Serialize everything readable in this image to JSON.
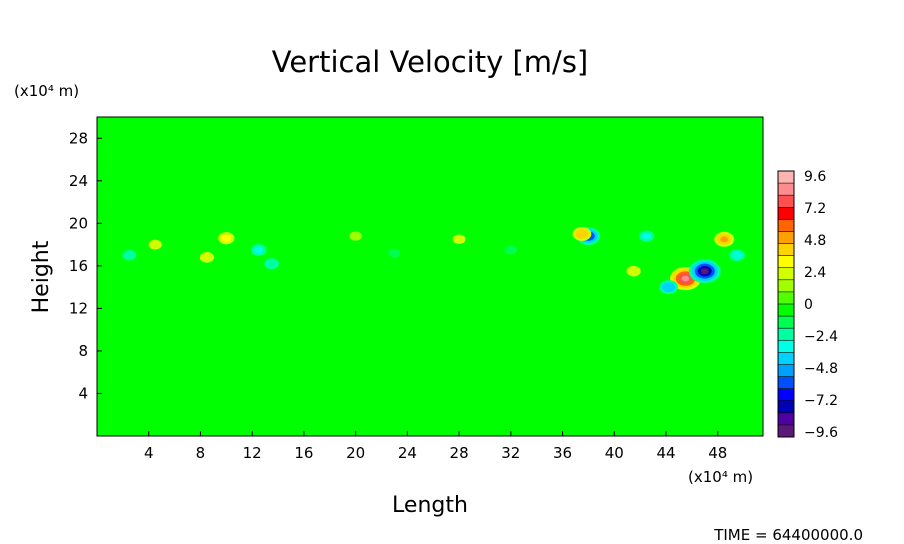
{
  "chart_data": {
    "type": "heatmap",
    "title": "Vertical Velocity [m/s]",
    "xlabel": "Length",
    "ylabel": "Height",
    "x_unit": "(x10⁴ m)",
    "y_unit": "(x10⁴ m)",
    "xlim": [
      0,
      51.5
    ],
    "ylim": [
      0,
      30
    ],
    "x_ticks": [
      "4",
      "8",
      "12",
      "16",
      "20",
      "24",
      "28",
      "32",
      "36",
      "40",
      "44",
      "48"
    ],
    "y_ticks": [
      "4",
      "8",
      "12",
      "16",
      "20",
      "24",
      "28"
    ],
    "value_range": [
      -10.8,
      10.8
    ],
    "background_value": -0.4,
    "colorbar_ticks": [
      "9.6",
      "7.2",
      "4.8",
      "2.4",
      "0",
      "−2.4",
      "−4.8",
      "−7.2",
      "−9.6"
    ],
    "colorbar_colors": [
      "#5a1878",
      "#5000a0",
      "#0000b4",
      "#0000ff",
      "#0050ff",
      "#00a0ff",
      "#00d2ff",
      "#00ffe6",
      "#00ffa0",
      "#00ff50",
      "#00ff00",
      "#50ff00",
      "#a0ff00",
      "#d2ff00",
      "#ffff00",
      "#ffd200",
      "#ffa000",
      "#ff6400",
      "#ff0000",
      "#ff5050",
      "#ff8c8c",
      "#ffb4b4"
    ],
    "features": [
      {
        "x": 45.5,
        "y": 14.8,
        "value": 9.6
      },
      {
        "x": 47.0,
        "y": 15.5,
        "value": -10.0
      },
      {
        "x": 44.2,
        "y": 14.0,
        "value": -4.5
      },
      {
        "x": 48.5,
        "y": 18.5,
        "value": 5.0
      },
      {
        "x": 38.0,
        "y": 18.8,
        "value": -6.5
      },
      {
        "x": 37.5,
        "y": 19.0,
        "value": 4.5
      },
      {
        "x": 12.5,
        "y": 17.5,
        "value": -3.2
      },
      {
        "x": 13.5,
        "y": 16.2,
        "value": -2.8
      },
      {
        "x": 10.0,
        "y": 18.6,
        "value": 3.4
      },
      {
        "x": 8.5,
        "y": 16.8,
        "value": 2.6
      },
      {
        "x": 4.5,
        "y": 18.0,
        "value": 2.2
      },
      {
        "x": 2.5,
        "y": 17.0,
        "value": -2.4
      },
      {
        "x": 20.0,
        "y": 18.8,
        "value": 1.8
      },
      {
        "x": 23.0,
        "y": 17.2,
        "value": -1.6
      },
      {
        "x": 28.0,
        "y": 18.5,
        "value": 2.0
      },
      {
        "x": 32.0,
        "y": 17.5,
        "value": -1.8
      },
      {
        "x": 41.5,
        "y": 15.5,
        "value": 2.6
      },
      {
        "x": 42.5,
        "y": 18.8,
        "value": -3.0
      },
      {
        "x": 49.5,
        "y": 17.0,
        "value": -3.2
      }
    ]
  },
  "time_label": "TIME = 64400000.0"
}
